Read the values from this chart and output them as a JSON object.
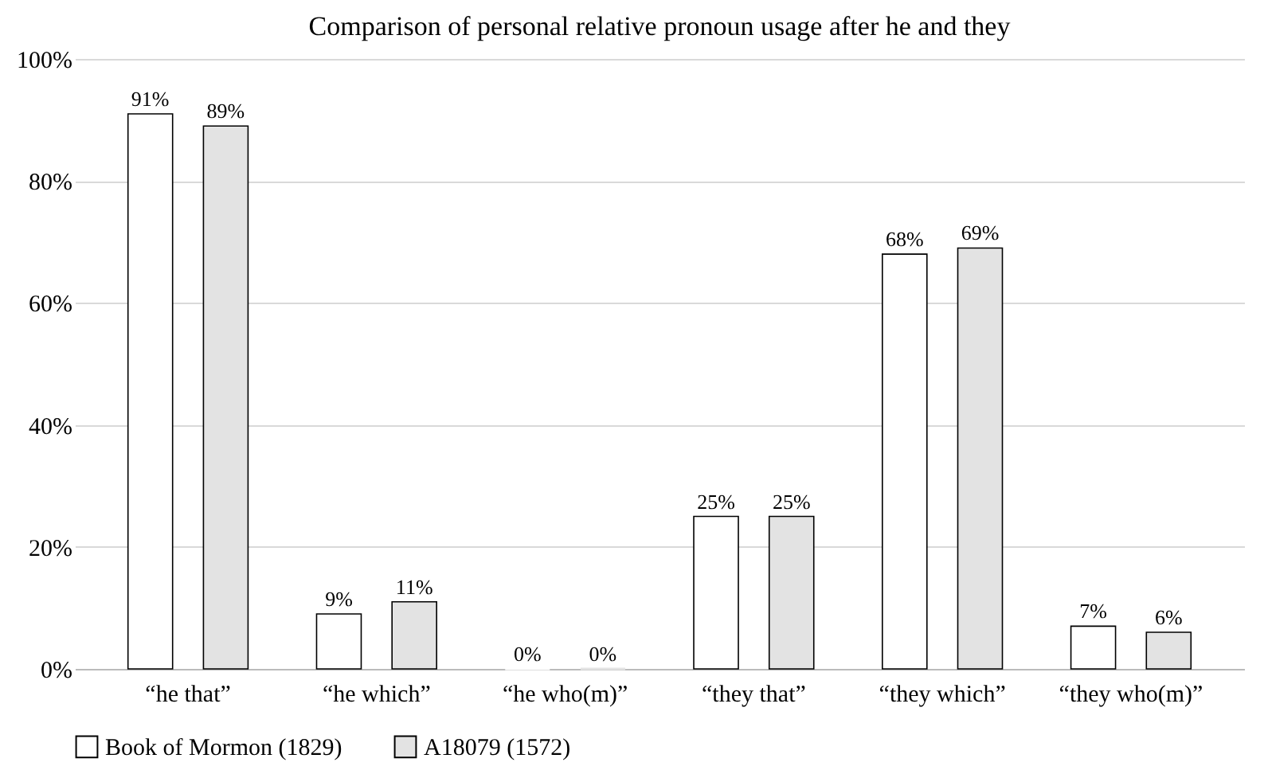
{
  "chart_data": {
    "type": "bar",
    "title": "Comparison of personal relative pronoun usage after he and they",
    "categories": [
      "“he that”",
      "“he which”",
      "“he who(m)”",
      "“they that”",
      "“they which”",
      "“they who(m)”"
    ],
    "series": [
      {
        "name": "Book of Mormon (1829)",
        "color": "#ffffff",
        "values": [
          91,
          9,
          0,
          25,
          68,
          7
        ],
        "value_labels": [
          "91%",
          "9%",
          "0%",
          "25%",
          "68%",
          "7%"
        ]
      },
      {
        "name": "A18079 (1572)",
        "color": "#e3e3e3",
        "values": [
          89,
          11,
          0,
          25,
          69,
          6
        ],
        "value_labels": [
          "89%",
          "11%",
          "0%",
          "25%",
          "69%",
          "6%"
        ]
      }
    ],
    "ylim": [
      0,
      100
    ],
    "yticks": [
      {
        "value": 0,
        "label": "0%"
      },
      {
        "value": 20,
        "label": "20%"
      },
      {
        "value": 40,
        "label": "40%"
      },
      {
        "value": 60,
        "label": "60%"
      },
      {
        "value": 80,
        "label": "80%"
      },
      {
        "value": 100,
        "label": "100%"
      }
    ],
    "grid": "y",
    "legend": "bottom"
  }
}
